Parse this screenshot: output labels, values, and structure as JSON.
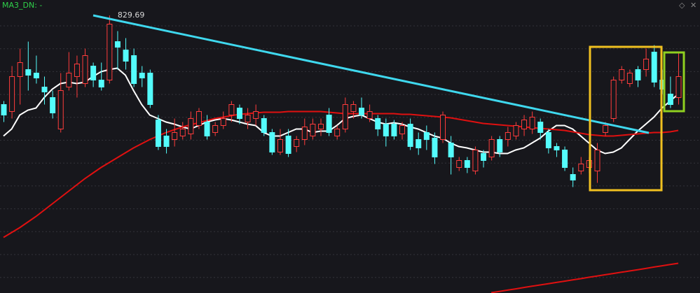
{
  "indicator_label": "MA3_DN: -",
  "chart_data": {
    "type": "candlestick",
    "up_color": "#ff3c3c",
    "down_color": "#54fcfc",
    "ylim": [
      620,
      830
    ],
    "ohlc": [
      [
        766,
        768.5,
        753.5,
        758.5
      ],
      [
        761,
        793.5,
        756,
        786
      ],
      [
        786,
        806,
        766,
        796
      ],
      [
        791,
        811,
        776,
        787
      ],
      [
        788.5,
        801,
        781,
        785
      ],
      [
        778.5,
        786,
        766,
        775
      ],
      [
        771,
        776,
        756,
        760
      ],
      [
        748.5,
        788.5,
        746,
        776
      ],
      [
        778.5,
        803.5,
        776,
        788.5
      ],
      [
        786,
        801,
        771,
        795
      ],
      [
        781,
        806,
        778.5,
        801
      ],
      [
        793.5,
        796,
        778.5,
        783.5
      ],
      [
        783.5,
        796,
        776,
        778.5
      ],
      [
        783.5,
        829.69,
        781,
        823.5
      ],
      [
        811,
        818.5,
        791,
        807
      ],
      [
        805,
        813.5,
        791,
        797
      ],
      [
        801,
        806,
        778.5,
        781
      ],
      [
        788.5,
        793.5,
        778.5,
        785
      ],
      [
        788.5,
        791,
        763.5,
        766
      ],
      [
        755,
        758.5,
        733.5,
        736
      ],
      [
        743.5,
        748.5,
        731,
        736
      ],
      [
        741,
        756,
        736,
        746
      ],
      [
        743.5,
        753.5,
        741,
        748.5
      ],
      [
        745,
        761,
        741,
        756
      ],
      [
        751,
        763.5,
        748.5,
        761
      ],
      [
        753.5,
        758.5,
        741,
        743.5
      ],
      [
        746,
        753.5,
        743.5,
        751
      ],
      [
        751,
        761,
        748.5,
        756
      ],
      [
        758.5,
        768.5,
        753.5,
        766
      ],
      [
        763.5,
        766,
        752,
        756
      ],
      [
        753.5,
        763.5,
        748.5,
        758.5
      ],
      [
        756,
        766,
        751,
        761
      ],
      [
        756,
        758.5,
        743.5,
        746
      ],
      [
        746,
        748.5,
        730,
        732
      ],
      [
        732,
        748.5,
        730,
        741
      ],
      [
        743.5,
        748.5,
        728.5,
        731
      ],
      [
        736,
        743.5,
        732,
        741
      ],
      [
        741,
        756,
        737,
        750
      ],
      [
        743.5,
        756,
        741,
        752
      ],
      [
        748.5,
        756,
        743.5,
        752
      ],
      [
        758.5,
        763.5,
        743.5,
        746
      ],
      [
        743.5,
        751,
        741,
        748.5
      ],
      [
        748.5,
        771,
        746,
        766
      ],
      [
        761,
        768.5,
        756,
        766
      ],
      [
        763.5,
        771,
        756,
        758.5
      ],
      [
        756,
        766,
        753.5,
        761
      ],
      [
        756,
        758.5,
        743.5,
        748.5
      ],
      [
        752,
        756,
        736,
        743.5
      ],
      [
        752,
        755,
        741,
        743.5
      ],
      [
        745,
        753.5,
        741,
        751
      ],
      [
        752,
        756,
        733.5,
        736
      ],
      [
        741,
        746,
        730,
        735
      ],
      [
        746,
        751,
        733.5,
        741
      ],
      [
        742,
        746,
        723.5,
        728.5
      ],
      [
        741,
        761,
        738.5,
        758.5
      ],
      [
        738.5,
        743.5,
        716,
        728.5
      ],
      [
        721,
        728.5,
        718.5,
        726
      ],
      [
        726,
        728.5,
        717,
        721
      ],
      [
        718.5,
        736,
        716,
        733.5
      ],
      [
        731,
        733.5,
        721,
        726
      ],
      [
        728.5,
        743.5,
        726,
        741
      ],
      [
        741,
        743.5,
        728.5,
        732
      ],
      [
        741,
        750,
        736,
        746
      ],
      [
        743.5,
        753.5,
        741,
        751
      ],
      [
        748.5,
        758.5,
        743.5,
        755
      ],
      [
        748.5,
        761,
        745,
        757
      ],
      [
        753.5,
        756,
        741,
        746
      ],
      [
        746,
        748.5,
        731,
        735
      ],
      [
        736,
        738.5,
        728.5,
        733.5
      ],
      [
        733.5,
        736,
        718.5,
        721
      ],
      [
        716,
        721,
        707,
        712
      ],
      [
        718.5,
        728.5,
        716,
        723.5
      ],
      [
        721,
        728.5,
        717,
        726
      ],
      [
        718.5,
        738.5,
        710,
        733.5
      ],
      [
        746,
        753.5,
        743.5,
        751
      ],
      [
        756,
        786,
        753.5,
        783.5
      ],
      [
        783.5,
        793.5,
        781,
        791
      ],
      [
        781,
        791,
        778.5,
        788.5
      ],
      [
        791,
        793.5,
        778.5,
        783.5
      ],
      [
        791,
        806,
        786,
        798.5
      ],
      [
        803.5,
        808.5,
        778.5,
        782
      ],
      [
        783.5,
        791,
        773.5,
        777
      ],
      [
        773.5,
        786,
        763.5,
        766
      ],
      [
        771,
        803.5,
        766,
        786
      ]
    ],
    "lines": [
      {
        "color": "#ffffff",
        "values": [
          743.5,
          748.5,
          758.5,
          762,
          763.5,
          771,
          777,
          781,
          782,
          781,
          782,
          786,
          789.5,
          791,
          792,
          787,
          776,
          766,
          758.5,
          756,
          753.5,
          752,
          750,
          748.5,
          751,
          753.5,
          755,
          756,
          755,
          753.5,
          752,
          751,
          746,
          743.5,
          743.5,
          746,
          748.5,
          748.5,
          746,
          747,
          747,
          751,
          756,
          757.5,
          758.5,
          756,
          753.5,
          752,
          753,
          752,
          750,
          748.5,
          746,
          743.5,
          742,
          738.5,
          736,
          735,
          733.5,
          732,
          732,
          731,
          731,
          733.5,
          735,
          738.5,
          742,
          747,
          751,
          751,
          748.5,
          743.5,
          738.5,
          733.5,
          731,
          732,
          735,
          741,
          747,
          752,
          757,
          763.5,
          768.5,
          773.5
        ]
      },
      {
        "color": "#e01010",
        "values": [
          671,
          674.5,
          678,
          682,
          686,
          690.5,
          695,
          699.5,
          704,
          708.5,
          713,
          717,
          721,
          724.5,
          728,
          731.5,
          735,
          738,
          741,
          743.5,
          746,
          748,
          750,
          751.5,
          753,
          754.5,
          756,
          757,
          758,
          759,
          759.5,
          760,
          760.5,
          760.5,
          760.5,
          761,
          761,
          761,
          761,
          761,
          760.5,
          760,
          759.5,
          759.5,
          759.5,
          759.5,
          759.5,
          759.5,
          759.5,
          759,
          759,
          758.5,
          758,
          757.5,
          757,
          756.5,
          755.5,
          754.5,
          753.5,
          752.5,
          752,
          751.5,
          751,
          750.5,
          750,
          749.5,
          749,
          748.5,
          748,
          747.5,
          746.5,
          745.5,
          744.5,
          744,
          743.5,
          743.5,
          744,
          744.5,
          745,
          745.5,
          746,
          746,
          746.5,
          747.5
        ]
      },
      {
        "color": "#e01010",
        "values": [
          null,
          null,
          null,
          null,
          null,
          null,
          null,
          null,
          null,
          null,
          null,
          null,
          null,
          null,
          null,
          null,
          null,
          null,
          null,
          null,
          null,
          null,
          null,
          null,
          null,
          null,
          null,
          null,
          null,
          null,
          null,
          null,
          null,
          null,
          null,
          null,
          null,
          null,
          null,
          null,
          null,
          null,
          null,
          null,
          null,
          null,
          null,
          null,
          null,
          null,
          null,
          null,
          null,
          null,
          null,
          null,
          null,
          null,
          null,
          null,
          631.5,
          632.4,
          633.3,
          634.2,
          635.2,
          636.1,
          637,
          637.9,
          638.8,
          639.7,
          640.6,
          641.5,
          642.5,
          643.4,
          644.3,
          645.2,
          646.1,
          647,
          647.9,
          648.8,
          649.8,
          650.7,
          651.6,
          652.5
        ]
      }
    ]
  }
}
